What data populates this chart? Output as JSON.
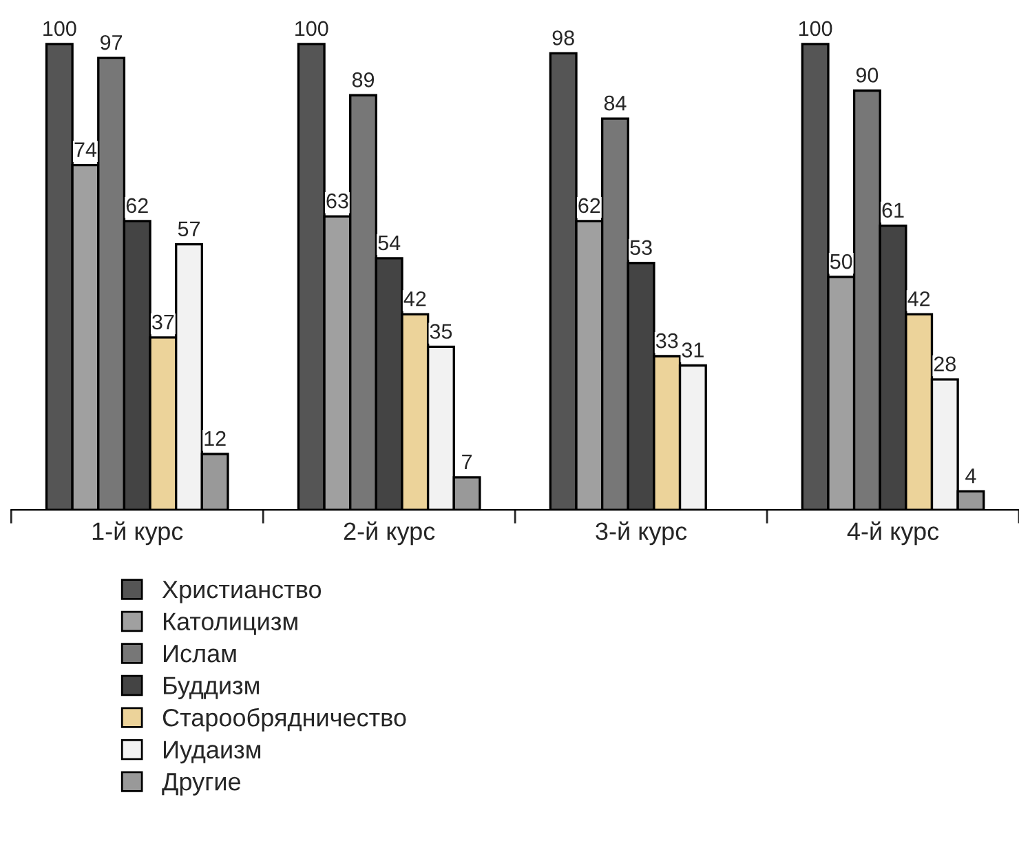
{
  "chart_data": {
    "type": "bar",
    "categories": [
      "1-й курс",
      "2-й курс",
      "3-й курс",
      "4-й курс"
    ],
    "series": [
      {
        "name": "Христианство",
        "color": "#555555",
        "values": [
          100,
          100,
          98,
          100
        ]
      },
      {
        "name": "Католицизм",
        "color": "#a0a0a0",
        "values": [
          74,
          63,
          62,
          50
        ]
      },
      {
        "name": "Ислам",
        "color": "#777777",
        "values": [
          97,
          89,
          84,
          90
        ]
      },
      {
        "name": "Буддизм",
        "color": "#444444",
        "values": [
          62,
          54,
          53,
          61
        ]
      },
      {
        "name": "Старообрядничество",
        "color": "#ecd39a",
        "values": [
          37,
          42,
          33,
          42
        ]
      },
      {
        "name": "Иудаизм",
        "color": "#f2f2f2",
        "values": [
          57,
          35,
          31,
          28
        ]
      },
      {
        "name": "Другие",
        "color": "#999999",
        "values": [
          12,
          7,
          null,
          4
        ]
      }
    ],
    "data_labels": true,
    "legend": "bottom",
    "grid": false
  }
}
